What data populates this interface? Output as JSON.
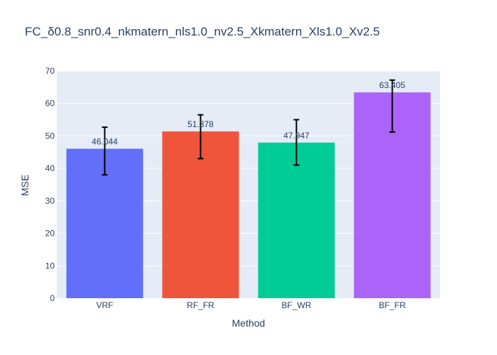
{
  "chart_data": {
    "type": "bar",
    "title": "FC_δ0.8_snr0.4_nkmatern_nls1.0_nv2.5_Xkmatern_Xls1.0_Xv2.5",
    "xlabel": "Method",
    "ylabel": "MSE",
    "categories": [
      "VRF",
      "RF_FR",
      "BF_WR",
      "BF_FR"
    ],
    "values": [
      46.044,
      51.378,
      47.947,
      63.405
    ],
    "value_labels": [
      "46.044",
      "51.378",
      "47.947",
      "63.405"
    ],
    "error_low": [
      38.0,
      43.0,
      41.0,
      51.2
    ],
    "error_high": [
      52.7,
      56.5,
      55.0,
      67.2
    ],
    "colors": [
      "#636efa",
      "#ef553b",
      "#00cc96",
      "#ab63fa"
    ],
    "ylim": [
      0,
      70
    ],
    "yticks": [
      0,
      10,
      20,
      30,
      40,
      50,
      60,
      70
    ],
    "grid": true,
    "legend": "none"
  }
}
